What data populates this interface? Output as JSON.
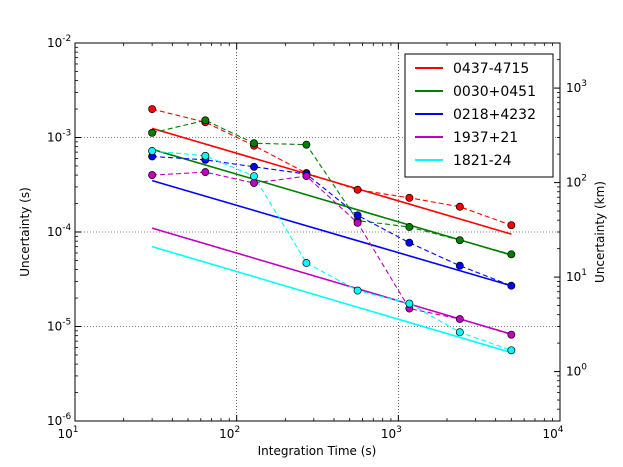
{
  "chart_data": {
    "type": "line",
    "scale": "log-log",
    "xlabel": "Integration Time (s)",
    "ylabel": "Uncertainty (s)",
    "ylabel_right": "Uncertainty (km)",
    "xlim": [
      10,
      10000
    ],
    "ylim": [
      1e-06,
      0.01
    ],
    "ylim_right_km": [
      0.3,
      3000
    ],
    "x_ticks": [
      {
        "value": 10,
        "base": "10",
        "exp": "1"
      },
      {
        "value": 100,
        "base": "10",
        "exp": "2"
      },
      {
        "value": 1000,
        "base": "10",
        "exp": "3"
      },
      {
        "value": 10000,
        "base": "10",
        "exp": "4"
      }
    ],
    "y_ticks": [
      {
        "value": 1e-06,
        "base": "10",
        "exp": "-6"
      },
      {
        "value": 1e-05,
        "base": "10",
        "exp": "-5"
      },
      {
        "value": 0.0001,
        "base": "10",
        "exp": "-4"
      },
      {
        "value": 0.001,
        "base": "10",
        "exp": "-3"
      },
      {
        "value": 0.01,
        "base": "10",
        "exp": "-2"
      }
    ],
    "y_ticks_right": [
      {
        "value": 1,
        "base": "10",
        "exp": "0"
      },
      {
        "value": 10,
        "base": "10",
        "exp": "1"
      },
      {
        "value": 100,
        "base": "10",
        "exp": "2"
      },
      {
        "value": 1000,
        "base": "10",
        "exp": "3"
      }
    ],
    "grid": true,
    "legend_position": "top-right",
    "x": [
      30,
      64,
      128,
      270,
      560,
      1170,
      2400,
      5000
    ],
    "series": [
      {
        "name": "0437-4715",
        "color": "#ff0000",
        "measured": [
          0.002,
          0.00145,
          0.00082,
          0.00042,
          0.00028,
          0.00023,
          0.000185,
          0.000118
        ],
        "fit": [
          0.00125,
          9.5e-05
        ]
      },
      {
        "name": "0030+0451",
        "color": "#008000",
        "measured": [
          0.00112,
          0.00152,
          0.00087,
          0.00084,
          0.000132,
          0.000113,
          8.2e-05,
          5.8e-05
        ],
        "fit": [
          0.00075,
          5.7e-05
        ]
      },
      {
        "name": "0218+4232",
        "color": "#0000ff",
        "measured": [
          0.00063,
          0.00058,
          0.00049,
          0.00041,
          0.00015,
          7.7e-05,
          4.4e-05,
          2.7e-05
        ],
        "fit": [
          0.00035,
          2.7e-05
        ]
      },
      {
        "name": "1937+21",
        "color": "#bf00bf",
        "measured": [
          0.0004,
          0.00043,
          0.00033,
          0.00039,
          0.000125,
          1.55e-05,
          1.2e-05,
          8.2e-06
        ],
        "fit": [
          0.00011,
          8.3e-06
        ]
      },
      {
        "name": "1821-24",
        "color": "#00ffff",
        "measured": [
          0.00072,
          0.00064,
          0.00039,
          4.7e-05,
          2.4e-05,
          1.75e-05,
          8.7e-06,
          5.6e-06
        ],
        "fit": [
          7e-05,
          5.3e-06
        ]
      }
    ]
  }
}
